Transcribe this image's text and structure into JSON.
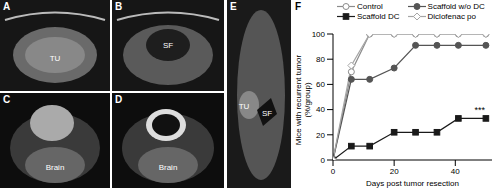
{
  "panels": [
    {
      "label": "A",
      "texts": [
        "TU"
      ]
    },
    {
      "label": "B",
      "texts": [
        "SF"
      ]
    },
    {
      "label": "C",
      "texts": [
        "Brain"
      ]
    },
    {
      "label": "D",
      "texts": [
        "Brain"
      ]
    },
    {
      "label": "E",
      "texts": [
        "TU",
        "SF"
      ]
    },
    {
      "label": "F",
      "texts": []
    }
  ],
  "chart_data": {
    "type": "line",
    "x_label": "Days post tumor resection",
    "y_label": "Mice with recurrent tumor (%/group)",
    "x": [
      0,
      6,
      12,
      20,
      27,
      34,
      41,
      50
    ],
    "series": [
      {
        "name": "Control",
        "color": "#8c8c8c",
        "marker": "open-circle",
        "values": [
          0,
          70,
          100,
          100,
          100,
          100,
          100,
          100
        ]
      },
      {
        "name": "Scaffold DC",
        "color": "#1a1a1a",
        "marker": "square",
        "values": [
          0,
          11,
          11,
          22,
          22,
          22,
          33,
          33
        ]
      },
      {
        "name": "Scaffold w/o DC",
        "color": "#555555",
        "marker": "circle",
        "values": [
          0,
          64,
          64,
          73,
          91,
          91,
          91,
          91
        ]
      },
      {
        "name": "Diclofenac po",
        "color": "#a6a6a6",
        "marker": "open-diamond",
        "values": [
          0,
          75,
          100,
          100,
          100,
          100,
          100,
          100
        ]
      }
    ],
    "xlim": [
      0,
      52
    ],
    "xticks": [
      0,
      20,
      40
    ],
    "ylim": [
      0,
      100
    ],
    "yticks": [
      0,
      20,
      40,
      60,
      80,
      100
    ],
    "annotations": [
      {
        "text": "***",
        "x": 48,
        "y": 40
      }
    ]
  }
}
